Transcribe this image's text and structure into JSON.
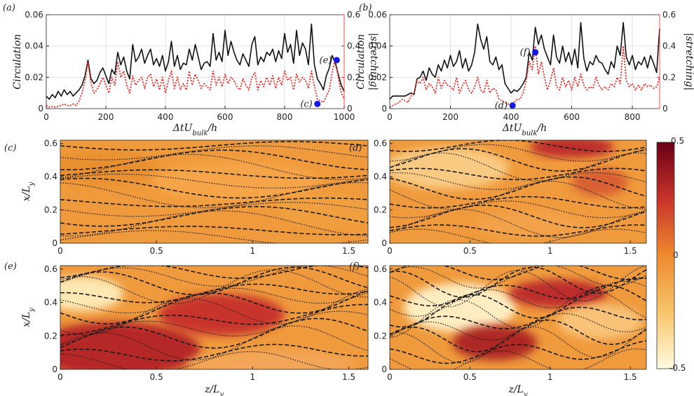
{
  "figure": {
    "colors": {
      "circulation": "#111111",
      "stretching": "#ff2020",
      "marker": "#1515ee",
      "red_axis": "#ff2020"
    },
    "colorbar": {
      "ticks": [
        "0.5",
        "0",
        "-0.5"
      ],
      "range": [
        -0.5,
        0.5
      ],
      "colormap": "white-orange-darkred"
    }
  },
  "chart_data": [
    {
      "panel": "(a)",
      "type": "line",
      "xlabel": "ΔtU_bulk/h",
      "ylabel_left": "Circulation",
      "ylabel_right": "|stretching|",
      "xlim": [
        0,
        1000
      ],
      "ylim_left": [
        0,
        0.06
      ],
      "ylim_right": [
        0,
        0.6
      ],
      "xticks": [
        "0",
        "200",
        "400",
        "600",
        "800",
        "1000"
      ],
      "yticks_left": [
        "0",
        "0.02",
        "0.04",
        "0.06"
      ],
      "yticks_right": [
        "0",
        "0.2",
        "0.4",
        "0.6"
      ],
      "grid": true,
      "series": [
        {
          "axis": "left",
          "style": "solid",
          "x": [
            0,
            10,
            20,
            30,
            40,
            50,
            60,
            70,
            80,
            90,
            100,
            110,
            120,
            130,
            140,
            150,
            160,
            170,
            180,
            190,
            200,
            210,
            220,
            230,
            240,
            250,
            260,
            270,
            280,
            290,
            300,
            310,
            320,
            330,
            340,
            350,
            360,
            370,
            380,
            390,
            400,
            410,
            420,
            430,
            440,
            450,
            460,
            470,
            480,
            490,
            500,
            510,
            520,
            530,
            540,
            550,
            560,
            570,
            580,
            590,
            600,
            610,
            620,
            630,
            640,
            650,
            660,
            670,
            680,
            690,
            700,
            710,
            720,
            730,
            740,
            750,
            760,
            770,
            780,
            790,
            800,
            810,
            820,
            830,
            840,
            850,
            860,
            870,
            880,
            890,
            900,
            910,
            920,
            930,
            940,
            950,
            960,
            970,
            980,
            990,
            1000
          ],
          "y": [
            0.008,
            0.006,
            0.009,
            0.007,
            0.011,
            0.008,
            0.012,
            0.009,
            0.011,
            0.008,
            0.01,
            0.012,
            0.015,
            0.021,
            0.031,
            0.019,
            0.016,
            0.018,
            0.023,
            0.026,
            0.021,
            0.016,
            0.025,
            0.022,
            0.036,
            0.028,
            0.033,
            0.024,
            0.019,
            0.041,
            0.03,
            0.033,
            0.038,
            0.029,
            0.034,
            0.038,
            0.028,
            0.032,
            0.027,
            0.034,
            0.024,
            0.03,
            0.043,
            0.027,
            0.034,
            0.025,
            0.029,
            0.028,
            0.038,
            0.031,
            0.041,
            0.033,
            0.025,
            0.029,
            0.03,
            0.027,
            0.048,
            0.031,
            0.036,
            0.03,
            0.05,
            0.034,
            0.043,
            0.036,
            0.031,
            0.028,
            0.035,
            0.031,
            0.027,
            0.041,
            0.046,
            0.028,
            0.033,
            0.03,
            0.036,
            0.034,
            0.038,
            0.03,
            0.037,
            0.032,
            0.048,
            0.036,
            0.041,
            0.029,
            0.05,
            0.034,
            0.042,
            0.038,
            0.028,
            0.054,
            0.028,
            0.019,
            0.016,
            0.012,
            0.021,
            0.026,
            0.034,
            0.029,
            0.022,
            0.015,
            0.011
          ]
        },
        {
          "axis": "right",
          "style": "dotted",
          "x": [
            0,
            10,
            20,
            30,
            40,
            50,
            60,
            70,
            80,
            90,
            100,
            110,
            120,
            130,
            140,
            150,
            160,
            170,
            180,
            190,
            200,
            210,
            220,
            230,
            240,
            250,
            260,
            270,
            280,
            290,
            300,
            310,
            320,
            330,
            340,
            350,
            360,
            370,
            380,
            390,
            400,
            410,
            420,
            430,
            440,
            450,
            460,
            470,
            480,
            490,
            500,
            510,
            520,
            530,
            540,
            550,
            560,
            570,
            580,
            590,
            600,
            610,
            620,
            630,
            640,
            650,
            660,
            670,
            680,
            690,
            700,
            710,
            720,
            730,
            740,
            750,
            760,
            770,
            780,
            790,
            800,
            810,
            820,
            830,
            840,
            850,
            860,
            870,
            880,
            890,
            900,
            910,
            920,
            930,
            940,
            950,
            960,
            970,
            980,
            990,
            1000
          ],
          "y": [
            0.02,
            0.01,
            0.015,
            0.01,
            0.015,
            0.02,
            0.03,
            0.02,
            0.02,
            0.03,
            0.02,
            0.05,
            0.1,
            0.18,
            0.3,
            0.16,
            0.1,
            0.12,
            0.16,
            0.2,
            0.15,
            0.1,
            0.2,
            0.15,
            0.3,
            0.2,
            0.24,
            0.15,
            0.1,
            0.21,
            0.15,
            0.18,
            0.2,
            0.13,
            0.2,
            0.22,
            0.14,
            0.19,
            0.12,
            0.2,
            0.1,
            0.18,
            0.24,
            0.13,
            0.2,
            0.12,
            0.16,
            0.12,
            0.24,
            0.15,
            0.22,
            0.18,
            0.13,
            0.16,
            0.14,
            0.12,
            0.24,
            0.15,
            0.2,
            0.14,
            0.22,
            0.16,
            0.2,
            0.18,
            0.14,
            0.12,
            0.19,
            0.15,
            0.12,
            0.2,
            0.23,
            0.12,
            0.18,
            0.14,
            0.2,
            0.15,
            0.21,
            0.13,
            0.2,
            0.15,
            0.24,
            0.18,
            0.2,
            0.12,
            0.22,
            0.17,
            0.2,
            0.18,
            0.13,
            0.24,
            0.14,
            0.06,
            0.05,
            0.04,
            0.08,
            0.12,
            0.24,
            0.32,
            0.2,
            0.1,
            0.06
          ]
        }
      ],
      "markers": [
        {
          "label": "(c)",
          "x": 910,
          "y": 0.003
        },
        {
          "label": "(e)",
          "x": 975,
          "y": 0.031
        }
      ]
    },
    {
      "panel": "(b)",
      "type": "line",
      "xlabel": "ΔtU_bulk/h",
      "ylabel_left": "Circulation",
      "ylabel_right": "|stretching|",
      "xlim": [
        0,
        890
      ],
      "ylim_left": [
        0,
        0.06
      ],
      "ylim_right": [
        0,
        0.6
      ],
      "xticks": [
        "0",
        "200",
        "400",
        "600",
        "800"
      ],
      "yticks_left": [
        "0",
        "0.02",
        "0.04",
        "0.06"
      ],
      "yticks_right": [
        "0",
        "0.2",
        "0.4",
        "0.6"
      ],
      "grid": true,
      "series": [
        {
          "axis": "left",
          "style": "solid",
          "x": [
            0,
            10,
            20,
            30,
            40,
            50,
            60,
            70,
            80,
            90,
            100,
            110,
            120,
            130,
            140,
            150,
            160,
            170,
            180,
            190,
            200,
            210,
            220,
            230,
            240,
            250,
            260,
            270,
            280,
            290,
            300,
            310,
            320,
            330,
            340,
            350,
            360,
            370,
            380,
            390,
            400,
            410,
            420,
            430,
            440,
            450,
            460,
            470,
            480,
            490,
            500,
            510,
            520,
            530,
            540,
            550,
            560,
            570,
            580,
            590,
            600,
            610,
            620,
            630,
            640,
            650,
            660,
            670,
            680,
            690,
            700,
            710,
            720,
            730,
            740,
            750,
            760,
            770,
            780,
            790,
            800,
            810,
            820,
            830,
            840,
            850,
            860,
            870,
            880,
            890
          ],
          "y": [
            0.006,
            0.008,
            0.008,
            0.008,
            0.008,
            0.008,
            0.009,
            0.01,
            0.009,
            0.019,
            0.02,
            0.024,
            0.018,
            0.026,
            0.022,
            0.02,
            0.028,
            0.024,
            0.031,
            0.026,
            0.034,
            0.027,
            0.03,
            0.037,
            0.026,
            0.032,
            0.024,
            0.028,
            0.036,
            0.054,
            0.044,
            0.038,
            0.046,
            0.03,
            0.028,
            0.033,
            0.025,
            0.028,
            0.016,
            0.013,
            0.01,
            0.012,
            0.011,
            0.013,
            0.016,
            0.02,
            0.036,
            0.031,
            0.052,
            0.041,
            0.047,
            0.038,
            0.033,
            0.028,
            0.047,
            0.033,
            0.029,
            0.04,
            0.03,
            0.036,
            0.028,
            0.038,
            0.026,
            0.055,
            0.032,
            0.024,
            0.03,
            0.028,
            0.034,
            0.03,
            0.029,
            0.025,
            0.022,
            0.03,
            0.026,
            0.04,
            0.034,
            0.055,
            0.033,
            0.028,
            0.034,
            0.025,
            0.03,
            0.028,
            0.033,
            0.026,
            0.034,
            0.029,
            0.023,
            0.051
          ]
        },
        {
          "axis": "right",
          "style": "dotted",
          "x": [
            0,
            10,
            20,
            30,
            40,
            50,
            60,
            70,
            80,
            90,
            100,
            110,
            120,
            130,
            140,
            150,
            160,
            170,
            180,
            190,
            200,
            210,
            220,
            230,
            240,
            250,
            260,
            270,
            280,
            290,
            300,
            310,
            320,
            330,
            340,
            350,
            360,
            370,
            380,
            390,
            400,
            410,
            420,
            430,
            440,
            450,
            460,
            470,
            480,
            490,
            500,
            510,
            520,
            530,
            540,
            550,
            560,
            570,
            580,
            590,
            600,
            610,
            620,
            630,
            640,
            650,
            660,
            670,
            680,
            690,
            700,
            710,
            720,
            730,
            740,
            750,
            760,
            770,
            780,
            790,
            800,
            810,
            820,
            830,
            840,
            850,
            860,
            870,
            880,
            890
          ],
          "y": [
            0.01,
            0.02,
            0.03,
            0.04,
            0.06,
            0.05,
            0.04,
            0.08,
            0.1,
            0.18,
            0.16,
            0.2,
            0.12,
            0.16,
            0.14,
            0.1,
            0.2,
            0.13,
            0.18,
            0.15,
            0.14,
            0.12,
            0.2,
            0.1,
            0.15,
            0.18,
            0.12,
            0.1,
            0.14,
            0.2,
            0.12,
            0.1,
            0.18,
            0.1,
            0.13,
            0.12,
            0.06,
            0.05,
            0.04,
            0.03,
            0.02,
            0.04,
            0.06,
            0.06,
            0.1,
            0.18,
            0.3,
            0.25,
            0.4,
            0.22,
            0.3,
            0.2,
            0.12,
            0.18,
            0.26,
            0.14,
            0.12,
            0.2,
            0.14,
            0.18,
            0.12,
            0.2,
            0.14,
            0.22,
            0.15,
            0.12,
            0.14,
            0.13,
            0.2,
            0.15,
            0.12,
            0.14,
            0.12,
            0.16,
            0.14,
            0.2,
            0.16,
            0.4,
            0.18,
            0.14,
            0.16,
            0.12,
            0.15,
            0.12,
            0.16,
            0.14,
            0.15,
            0.13,
            0.14,
            0.2
          ]
        }
      ],
      "markers": [
        {
          "label": "(d)",
          "x": 405,
          "y": 0.002
        },
        {
          "label": "(f)",
          "x": 480,
          "y": 0.036
        }
      ]
    },
    {
      "panel": "(c)",
      "type": "heatmap",
      "xlabel": "",
      "ylabel": "x/L_y",
      "xlim": [
        0,
        1.6
      ],
      "ylim": [
        0,
        0.62
      ],
      "xticks": [
        "0",
        "0.5",
        "1",
        "1.5"
      ],
      "yticks": [
        "0",
        "0.2",
        "0.4",
        "0.6"
      ]
    },
    {
      "panel": "(d)",
      "type": "heatmap",
      "xlabel": "",
      "ylabel": "",
      "xlim": [
        0,
        1.6
      ],
      "ylim": [
        0,
        0.62
      ],
      "xticks": [
        "0",
        "0.5",
        "1",
        "1.5"
      ],
      "yticks": [
        "0",
        "0.2",
        "0.4",
        "0.6"
      ]
    },
    {
      "panel": "(e)",
      "type": "heatmap",
      "xlabel": "z/L_y",
      "ylabel": "x/L_y",
      "xlim": [
        0,
        1.6
      ],
      "ylim": [
        0,
        0.62
      ],
      "xticks": [
        "0",
        "0.5",
        "1",
        "1.5"
      ],
      "yticks": [
        "0",
        "0.2",
        "0.4",
        "0.6"
      ]
    },
    {
      "panel": "(f)",
      "type": "heatmap",
      "xlabel": "z/L_y",
      "ylabel": "",
      "xlim": [
        0,
        1.6
      ],
      "ylim": [
        0,
        0.62
      ],
      "xticks": [
        "0",
        "0.5",
        "1",
        "1.5"
      ],
      "yticks": [
        "0",
        "0.2",
        "0.4",
        "0.6"
      ]
    }
  ]
}
